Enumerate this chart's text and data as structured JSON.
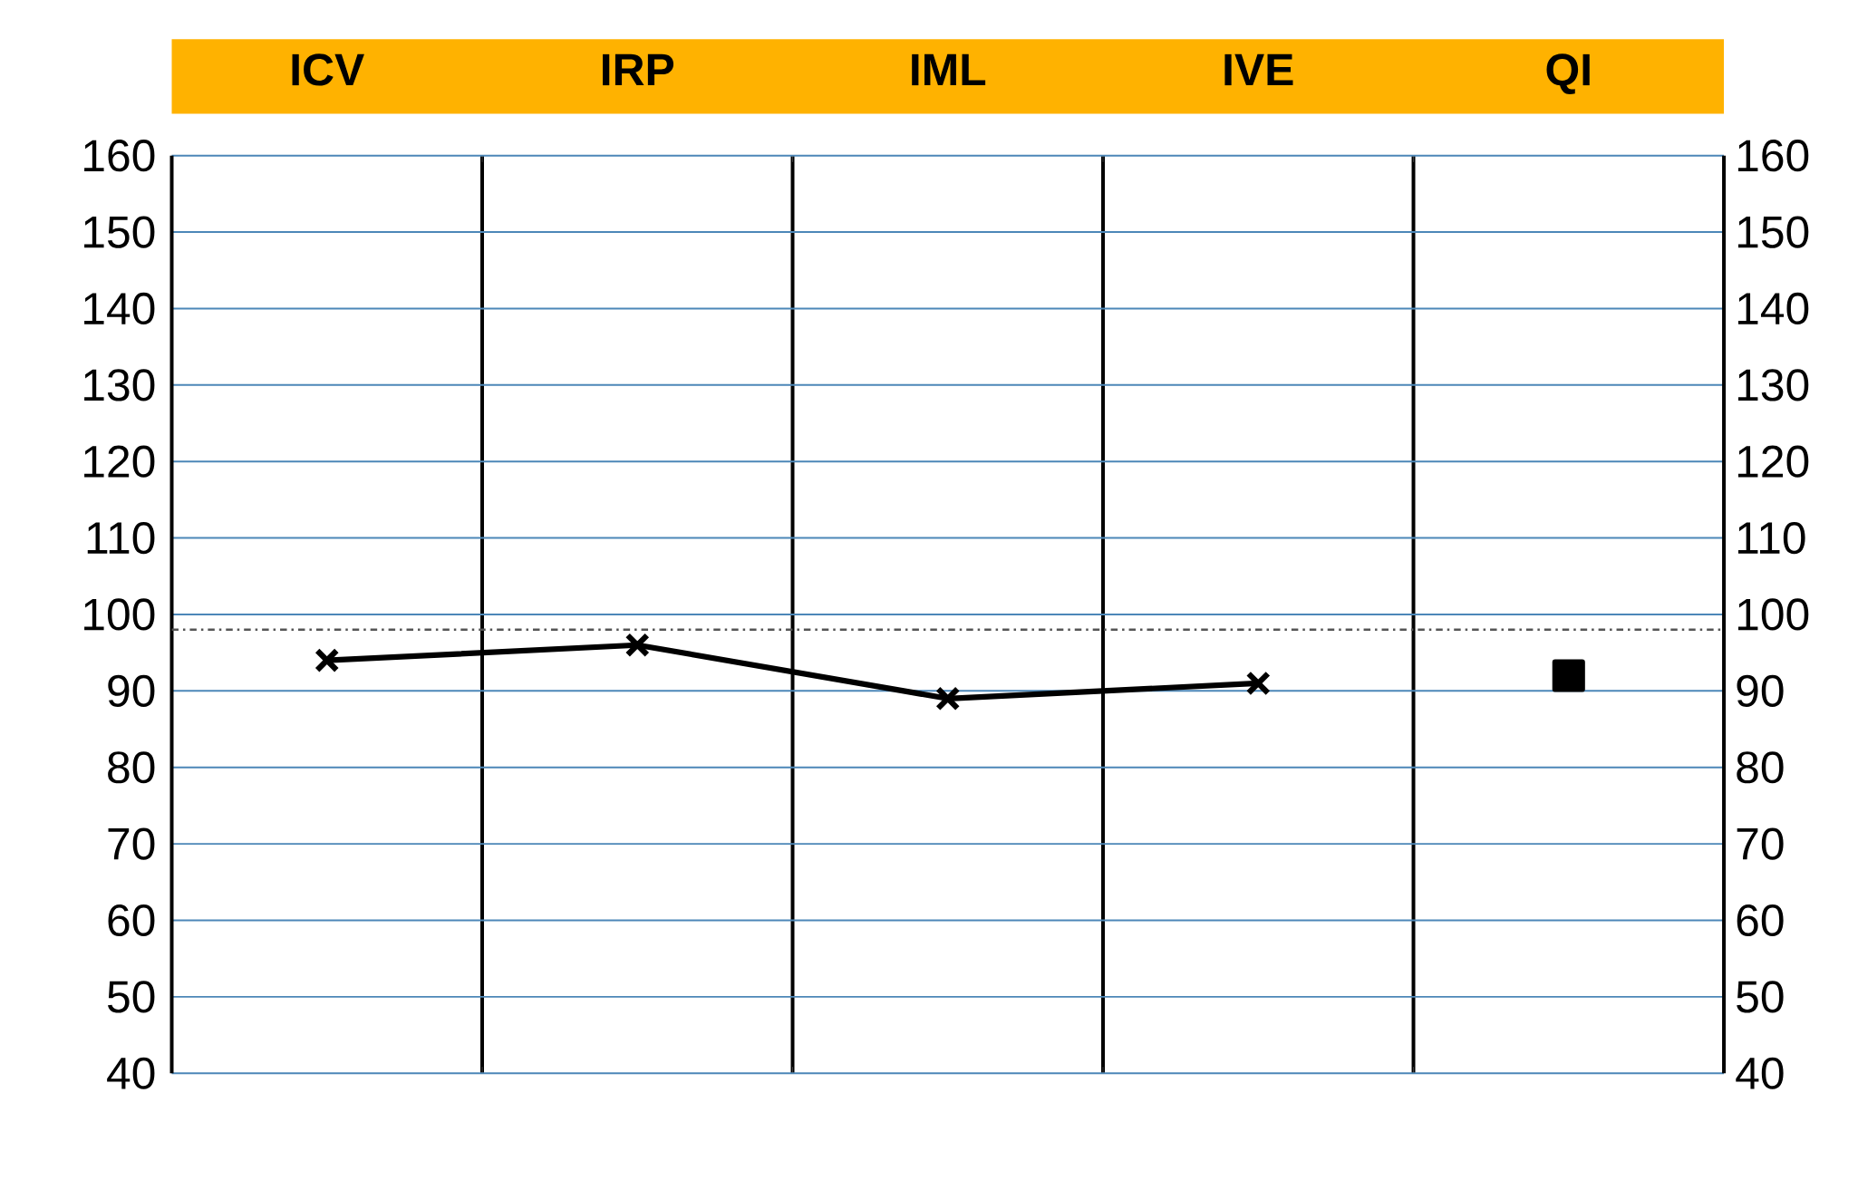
{
  "chart_data": {
    "type": "line",
    "categories": [
      "ICV",
      "IRP",
      "IML",
      "IVE",
      "QI"
    ],
    "series": [
      {
        "color": "#000000",
        "values": [
          94,
          96,
          89,
          91,
          null
        ],
        "marker": "cross"
      },
      {
        "type": "scatter",
        "color": "#000000",
        "values": [
          null,
          null,
          null,
          null,
          92
        ],
        "marker": "square"
      }
    ],
    "ylim": [
      40,
      160
    ],
    "yticks": [
      40,
      50,
      60,
      70,
      80,
      90,
      100,
      110,
      120,
      130,
      140,
      150,
      160
    ],
    "y2lim": [
      40,
      160
    ],
    "y2ticks": [
      40,
      50,
      60,
      70,
      80,
      90,
      100,
      110,
      120,
      130,
      140,
      150,
      160
    ],
    "ref_lines": [
      {
        "axis": "y",
        "value": 98,
        "color": "#555555",
        "line_style": "dashdotted"
      }
    ],
    "grid": true
  }
}
